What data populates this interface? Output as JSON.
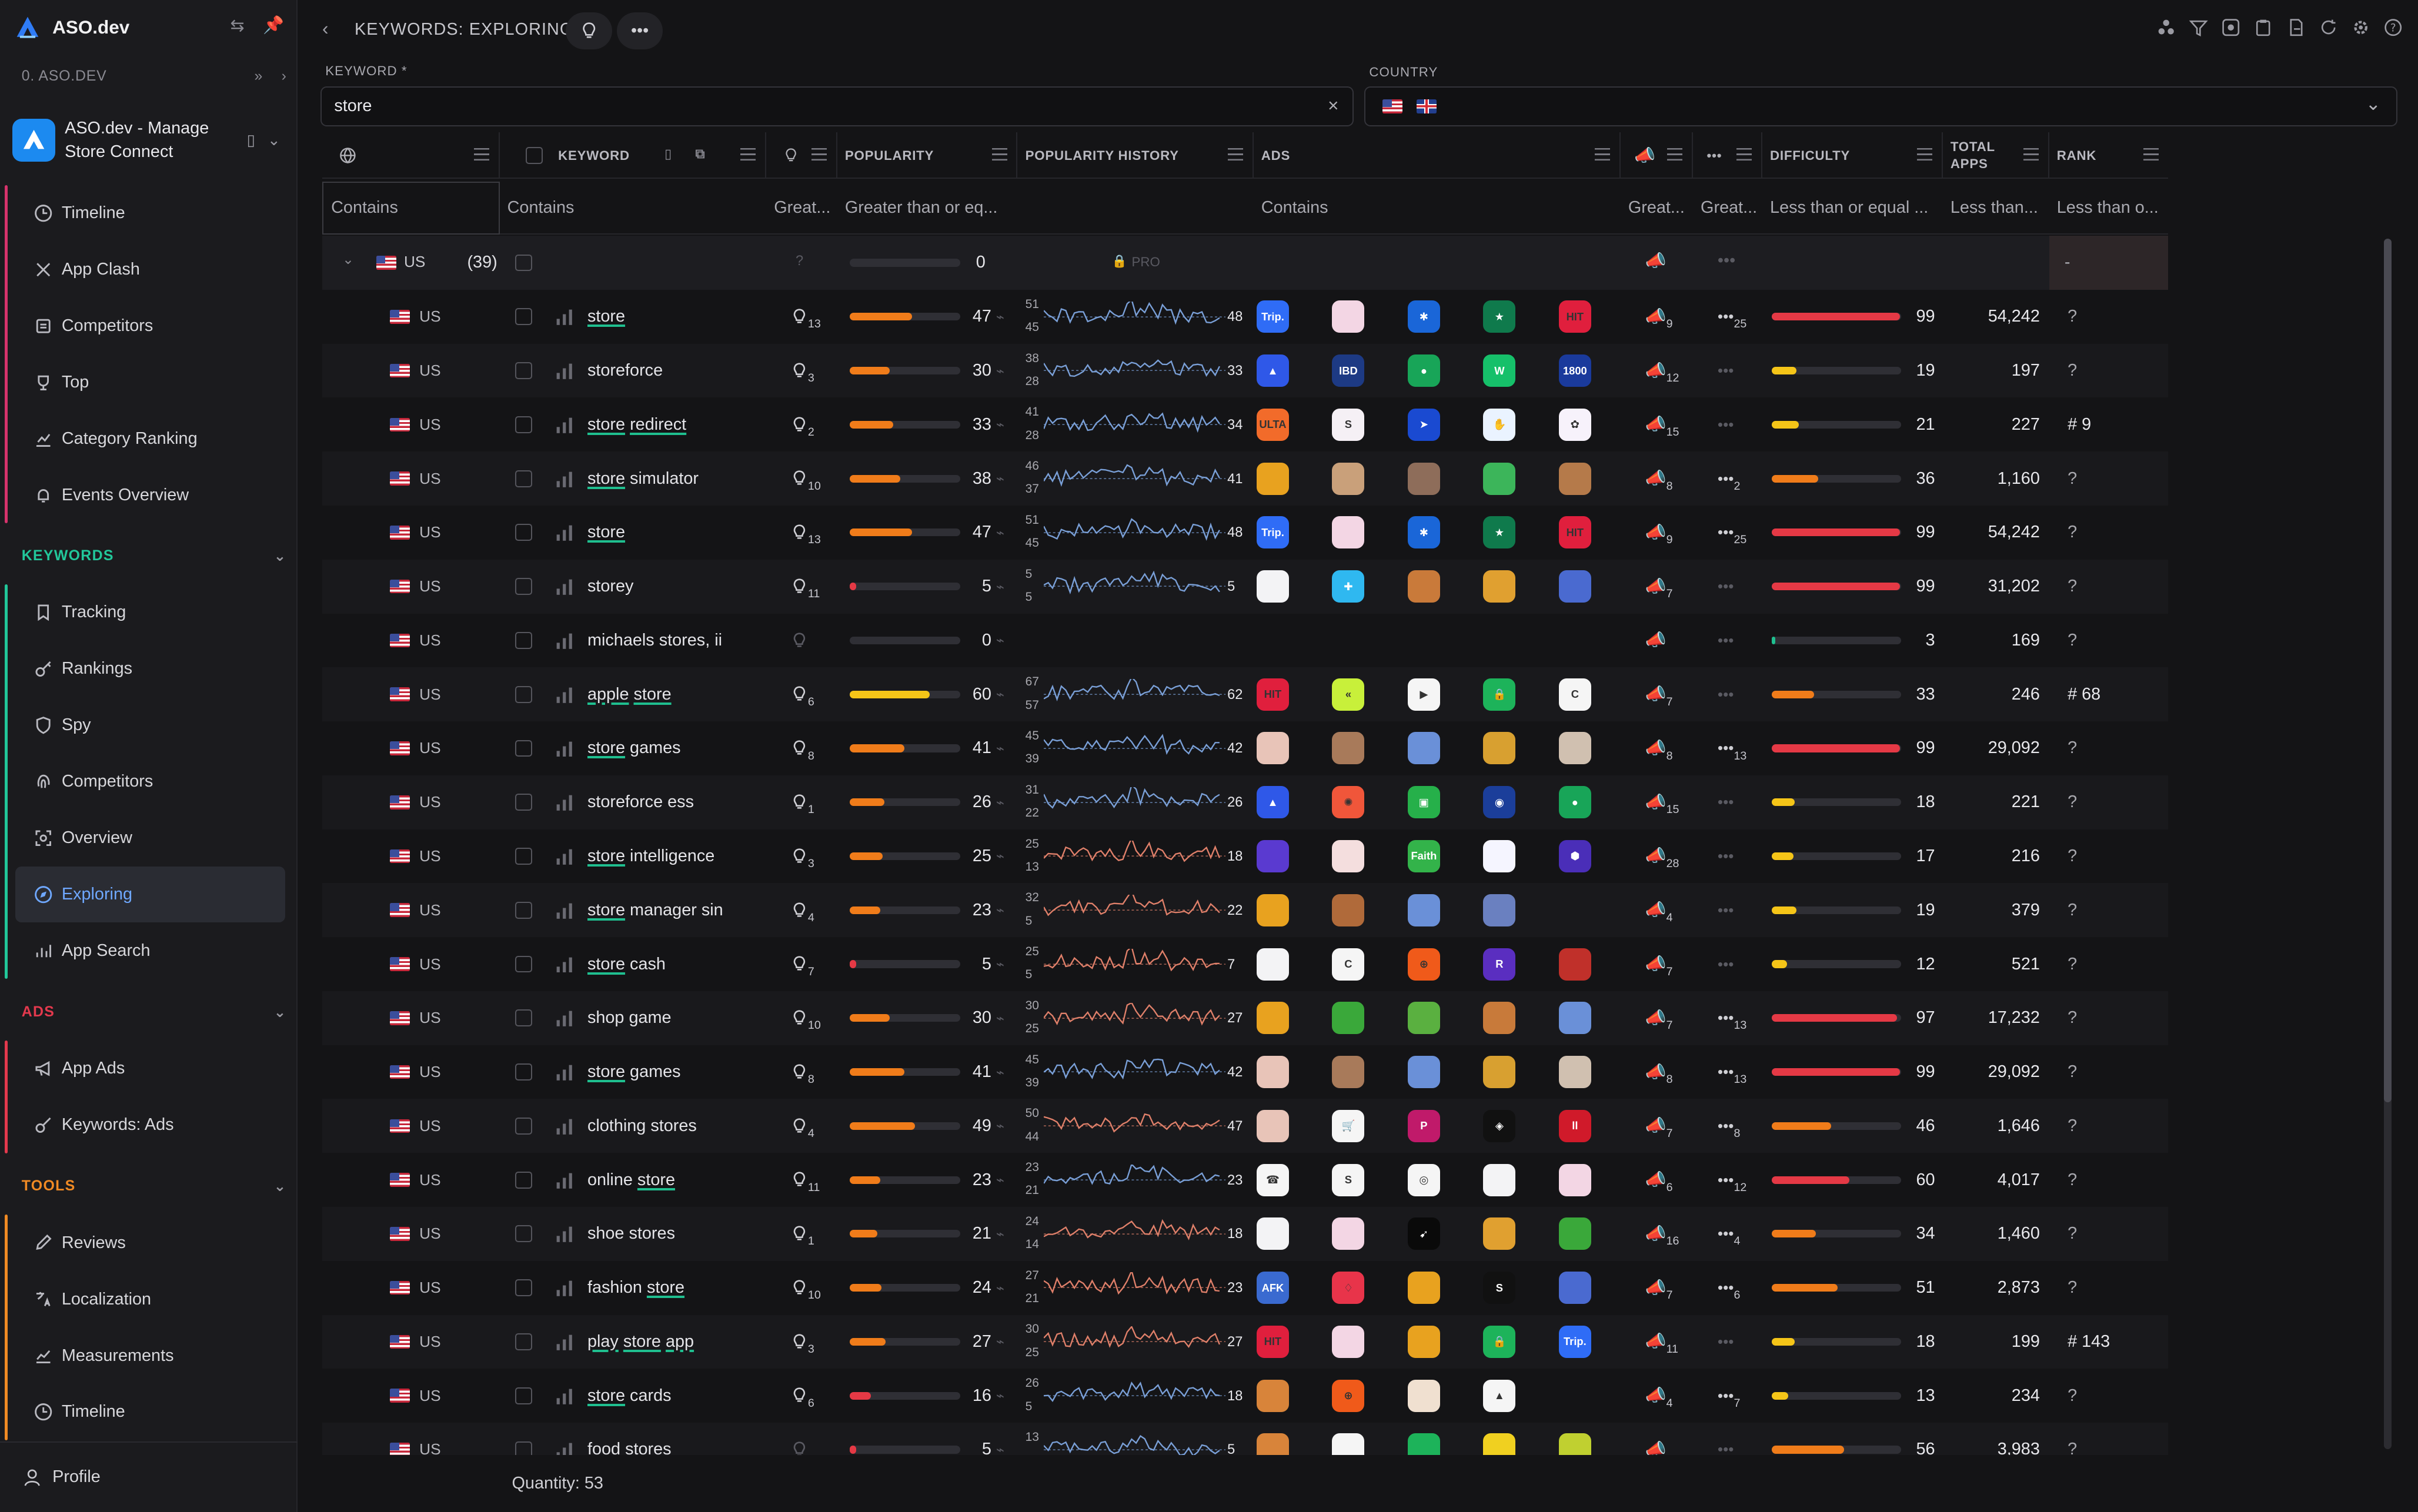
{
  "brand": {
    "name": "ASO.dev"
  },
  "org": {
    "label": "0. ASO.DEV"
  },
  "app": {
    "name": "ASO.dev - Manage Store Connect"
  },
  "nav_top": [
    {
      "label": "Timeline",
      "icon": "clock-icon"
    },
    {
      "label": "App Clash",
      "icon": "swords-icon"
    },
    {
      "label": "Competitors",
      "icon": "layers-icon"
    },
    {
      "label": "Top",
      "icon": "trophy-icon"
    },
    {
      "label": "Category Ranking",
      "icon": "chart-icon"
    },
    {
      "label": "Events Overview",
      "icon": "bell-icon"
    }
  ],
  "sections": {
    "keywords": {
      "title": "KEYWORDS",
      "color": "#22c79a"
    },
    "ads": {
      "title": "ADS",
      "color": "#e3394d"
    },
    "tools": {
      "title": "TOOLS",
      "color": "#f08a24"
    }
  },
  "nav_keywords": [
    {
      "label": "Tracking",
      "icon": "bookmark-icon"
    },
    {
      "label": "Rankings",
      "icon": "key-icon"
    },
    {
      "label": "Spy",
      "icon": "shield-icon"
    },
    {
      "label": "Competitors",
      "icon": "fingerprint-icon"
    },
    {
      "label": "Overview",
      "icon": "scan-icon"
    },
    {
      "label": "Exploring",
      "icon": "compass-icon",
      "active": true
    },
    {
      "label": "App Search",
      "icon": "bars-icon"
    }
  ],
  "nav_ads": [
    {
      "label": "App Ads",
      "icon": "megaphone-icon"
    },
    {
      "label": "Keywords: Ads",
      "icon": "key-ads-icon"
    }
  ],
  "nav_tools": [
    {
      "label": "Reviews",
      "icon": "edit-icon"
    },
    {
      "label": "Localization",
      "icon": "translate-icon"
    },
    {
      "label": "Measurements",
      "icon": "trend-icon"
    },
    {
      "label": "Timeline",
      "icon": "clock-icon"
    }
  ],
  "profile": {
    "label": "Profile"
  },
  "header": {
    "title": "KEYWORDS: EXPLORING"
  },
  "filters": {
    "keyword_label": "KEYWORD *",
    "keyword_value": "store",
    "country_label": "COUNTRY"
  },
  "columns": {
    "keyword": "KEYWORD",
    "popularity": "POPULARITY",
    "popularity_history": "POPULARITY HISTORY",
    "ads": "ADS",
    "difficulty": "DIFFICULTY",
    "total_apps": "TOTAL APPS",
    "rank": "RANK"
  },
  "filter_row": {
    "col0": "Contains",
    "keyword": "Contains",
    "hint": "Great...",
    "popularity": "Greater than or eq...",
    "ads": "Contains",
    "c1": "Great...",
    "c2": "Great...",
    "difficulty": "Less than or equal ...",
    "total": "Less than...",
    "rank": "Less than o..."
  },
  "group": {
    "country": "US",
    "count": "(39)",
    "pop": "0",
    "pro": "PRO",
    "rank": "-"
  },
  "rows": [
    {
      "kw": "store",
      "u": [
        0
      ],
      "hint": "13",
      "pop": 47,
      "hmax": "51",
      "hmin": "45",
      "hend": "48",
      "ads": "9",
      "more": "25",
      "diff": 99,
      "total": "54,242",
      "rank": "?",
      "icons": [
        "#2f6cf6:Trip.",
        "#f3d6e4:",
        "#1a66d8:✱",
        "#0f7a4c:★",
        "#e01f3d:HIT"
      ]
    },
    {
      "kw": "storeforce",
      "u": [],
      "hint": "3",
      "pop": 30,
      "hmax": "38",
      "hmin": "28",
      "hend": "33",
      "ads": "12",
      "more": "",
      "diff": 19,
      "total": "197",
      "rank": "?",
      "icons": [
        "#2f58e8:▲",
        "#1d3a84:IBD",
        "#18a558:●",
        "#16c06a:W",
        "#1a3a9c:1800"
      ]
    },
    {
      "kw": "store redirect",
      "u": [
        0,
        1
      ],
      "hint": "2",
      "pop": 33,
      "hmax": "41",
      "hmin": "28",
      "hend": "34",
      "ads": "15",
      "more": "",
      "diff": 21,
      "total": "227",
      "rank": "# 9",
      "icons": [
        "#f26b2a:ULTA",
        "#f5f0f5:S",
        "#1a4ad1:➤",
        "#eaf3ff:✋",
        "#f7f2fb:✿"
      ]
    },
    {
      "kw": "store simulator",
      "u": [
        0
      ],
      "hint": "10",
      "pop": 38,
      "hmax": "46",
      "hmin": "37",
      "hend": "41",
      "ads": "8",
      "more": "2",
      "diff": 36,
      "total": "1,160",
      "rank": "?",
      "icons": [
        "#e8a21f:",
        "#c9a07a:",
        "#8e6d5a:",
        "#3cb55a:",
        "#b57a4a:"
      ]
    },
    {
      "kw": "store",
      "u": [
        0
      ],
      "hint": "13",
      "pop": 47,
      "hmax": "51",
      "hmin": "45",
      "hend": "48",
      "ads": "9",
      "more": "25",
      "diff": 99,
      "total": "54,242",
      "rank": "?",
      "icons": [
        "#2f6cf6:Trip.",
        "#f3d6e4:",
        "#1a66d8:✱",
        "#0f7a4c:★",
        "#e01f3d:HIT"
      ]
    },
    {
      "kw": "storey",
      "u": [],
      "hint": "11",
      "pop": 5,
      "hmax": "5",
      "hmin": "5",
      "hend": "5",
      "ads": "7",
      "more": "",
      "diff": 99,
      "total": "31,202",
      "rank": "?",
      "icons": [
        "#f3f3f5:",
        "#2fb8f0:✚",
        "#c97a3a:",
        "#e0a030:",
        "#4a6ad0:"
      ]
    },
    {
      "kw": "michaels stores, ii",
      "u": [],
      "hint": "",
      "pop": 0,
      "hmax": "",
      "hmin": "",
      "hend": "",
      "ads": "",
      "more": "",
      "diff": 3,
      "total": "169",
      "rank": "?",
      "icons": []
    },
    {
      "kw": "apple store",
      "u": [
        0,
        1
      ],
      "hint": "6",
      "pop": 60,
      "hmax": "67",
      "hmin": "57",
      "hend": "62",
      "ads": "7",
      "more": "",
      "diff": 33,
      "total": "246",
      "rank": "# 68",
      "icons": [
        "#e01f3d:HIT",
        "#c8f03a:«",
        "#f5f5f5:▶",
        "#1db35a:🔒",
        "#f5f5f5:C"
      ]
    },
    {
      "kw": "store games",
      "u": [
        0
      ],
      "hint": "8",
      "pop": 41,
      "hmax": "45",
      "hmin": "39",
      "hend": "42",
      "ads": "8",
      "more": "13",
      "diff": 99,
      "total": "29,092",
      "rank": "?",
      "icons": [
        "#e8c4b8:",
        "#a87a5a:",
        "#6a90d8:",
        "#d8a030:",
        "#d0c0b0:"
      ]
    },
    {
      "kw": "storeforce ess",
      "u": [],
      "hint": "1",
      "pop": 26,
      "hmax": "31",
      "hmin": "22",
      "hend": "26",
      "ads": "15",
      "more": "",
      "diff": 18,
      "total": "221",
      "rank": "?",
      "icons": [
        "#2f58e8:▲",
        "#f0563a:✺",
        "#26b04a:▣",
        "#1b3e9a:◉",
        "#18a558:●"
      ]
    },
    {
      "kw": "store intelligence",
      "u": [
        0
      ],
      "hint": "3",
      "pop": 25,
      "hmax": "25",
      "hmin": "13",
      "hend": "18",
      "ads": "28",
      "more": "",
      "diff": 17,
      "total": "216",
      "rank": "?",
      "icons": [
        "#5a3ad0:",
        "#f4dede:",
        "#33b34a:Faith",
        "#f5f5ff:",
        "#4a2eb8:⬢"
      ]
    },
    {
      "kw": "store manager sin",
      "u": [
        0
      ],
      "hint": "4",
      "pop": 23,
      "hmax": "32",
      "hmin": "5",
      "hend": "22",
      "ads": "4",
      "more": "",
      "diff": 19,
      "total": "379",
      "rank": "?",
      "icons": [
        "#e8a21f:",
        "#b06a3a:",
        "#6a90d8:",
        "#6a80c0:"
      ]
    },
    {
      "kw": "store cash",
      "u": [
        0
      ],
      "hint": "7",
      "pop": 5,
      "hmax": "25",
      "hmin": "5",
      "hend": "7",
      "ads": "7",
      "more": "",
      "diff": 12,
      "total": "521",
      "rank": "?",
      "icons": [
        "#f3f3f5:",
        "#f5f5f5:C",
        "#f05a1a:⊕",
        "#5a2ec0:R",
        "#c0302a:"
      ]
    },
    {
      "kw": "shop game",
      "u": [],
      "hint": "10",
      "pop": 30,
      "hmax": "30",
      "hmin": "25",
      "hend": "27",
      "ads": "7",
      "more": "13",
      "diff": 97,
      "total": "17,232",
      "rank": "?",
      "icons": [
        "#e8a21f:",
        "#3aa83a:",
        "#5ab040:",
        "#c87a3a:",
        "#6a90d8:"
      ]
    },
    {
      "kw": "store games",
      "u": [
        0
      ],
      "hint": "8",
      "pop": 41,
      "hmax": "45",
      "hmin": "39",
      "hend": "42",
      "ads": "8",
      "more": "13",
      "diff": 99,
      "total": "29,092",
      "rank": "?",
      "icons": [
        "#e8c4b8:",
        "#a87a5a:",
        "#6a90d8:",
        "#d8a030:",
        "#d0c0b0:"
      ]
    },
    {
      "kw": "clothing stores",
      "u": [],
      "hint": "4",
      "pop": 49,
      "hmax": "50",
      "hmin": "44",
      "hend": "47",
      "ads": "7",
      "more": "8",
      "diff": 46,
      "total": "1,646",
      "rank": "?",
      "icons": [
        "#e8c4b8:",
        "#f5f5f5:🛒",
        "#c01a6a:P",
        "#111111:◈",
        "#d01a2a:ll"
      ]
    },
    {
      "kw": "online store",
      "u": [
        1
      ],
      "hint": "11",
      "pop": 23,
      "hmax": "23",
      "hmin": "21",
      "hend": "23",
      "ads": "6",
      "more": "12",
      "diff": 60,
      "total": "4,017",
      "rank": "?",
      "icons": [
        "#f5f5f5:☎",
        "#f5f5f5:S",
        "#f5f5f5:◎",
        "#f3f3f5:",
        "#f3d6e4:"
      ]
    },
    {
      "kw": "shoe stores",
      "u": [],
      "hint": "1",
      "pop": 21,
      "hmax": "24",
      "hmin": "14",
      "hend": "18",
      "ads": "16",
      "more": "4",
      "diff": 34,
      "total": "1,460",
      "rank": "?",
      "icons": [
        "#f3f3f5:",
        "#f3d6e4:",
        "#0a0a0a:➹",
        "#e0a030:",
        "#3aa83a:"
      ]
    },
    {
      "kw": "fashion store",
      "u": [
        1
      ],
      "hint": "10",
      "pop": 24,
      "hmax": "27",
      "hmin": "21",
      "hend": "23",
      "ads": "7",
      "more": "6",
      "diff": 51,
      "total": "2,873",
      "rank": "?",
      "icons": [
        "#3a6ad0:AFK",
        "#e8344a:♢",
        "#e8a21f:",
        "#111111:S",
        "#4a6ad0:"
      ]
    },
    {
      "kw": "play store app",
      "u": [
        0,
        1,
        2
      ],
      "hint": "3",
      "pop": 27,
      "hmax": "30",
      "hmin": "25",
      "hend": "27",
      "ads": "11",
      "more": "",
      "diff": 18,
      "total": "199",
      "rank": "# 143",
      "icons": [
        "#e01f3d:HIT",
        "#f3d6e4:",
        "#e8a21f:",
        "#1db35a:🔒",
        "#2f6cf6:Trip."
      ]
    },
    {
      "kw": "store cards",
      "u": [
        0
      ],
      "hint": "6",
      "pop": 16,
      "hmax": "26",
      "hmin": "5",
      "hend": "18",
      "ads": "4",
      "more": "7",
      "diff": 13,
      "total": "234",
      "rank": "?",
      "icons": [
        "#d8843a:",
        "#f05a1a:⊕",
        "#f0e0d0:",
        "#f5f5f5:▲"
      ]
    },
    {
      "kw": "food stores",
      "u": [],
      "hint": "",
      "pop": 5,
      "hmax": "13",
      "hmin": "",
      "hend": "5",
      "ads": "",
      "more": "",
      "diff": 56,
      "total": "3,983",
      "rank": "?",
      "icons": [
        "#d8843a:",
        "#f5f5f5:",
        "#1db35a:",
        "#f0d020:",
        "#c0d030:"
      ]
    }
  ],
  "footer": {
    "quantity": "Quantity: 53"
  },
  "colors": {
    "accent": "#22c79a",
    "link": "#6fa8ff",
    "red": "#e53945",
    "orange": "#f07c1a",
    "yellow": "#f5c518"
  }
}
